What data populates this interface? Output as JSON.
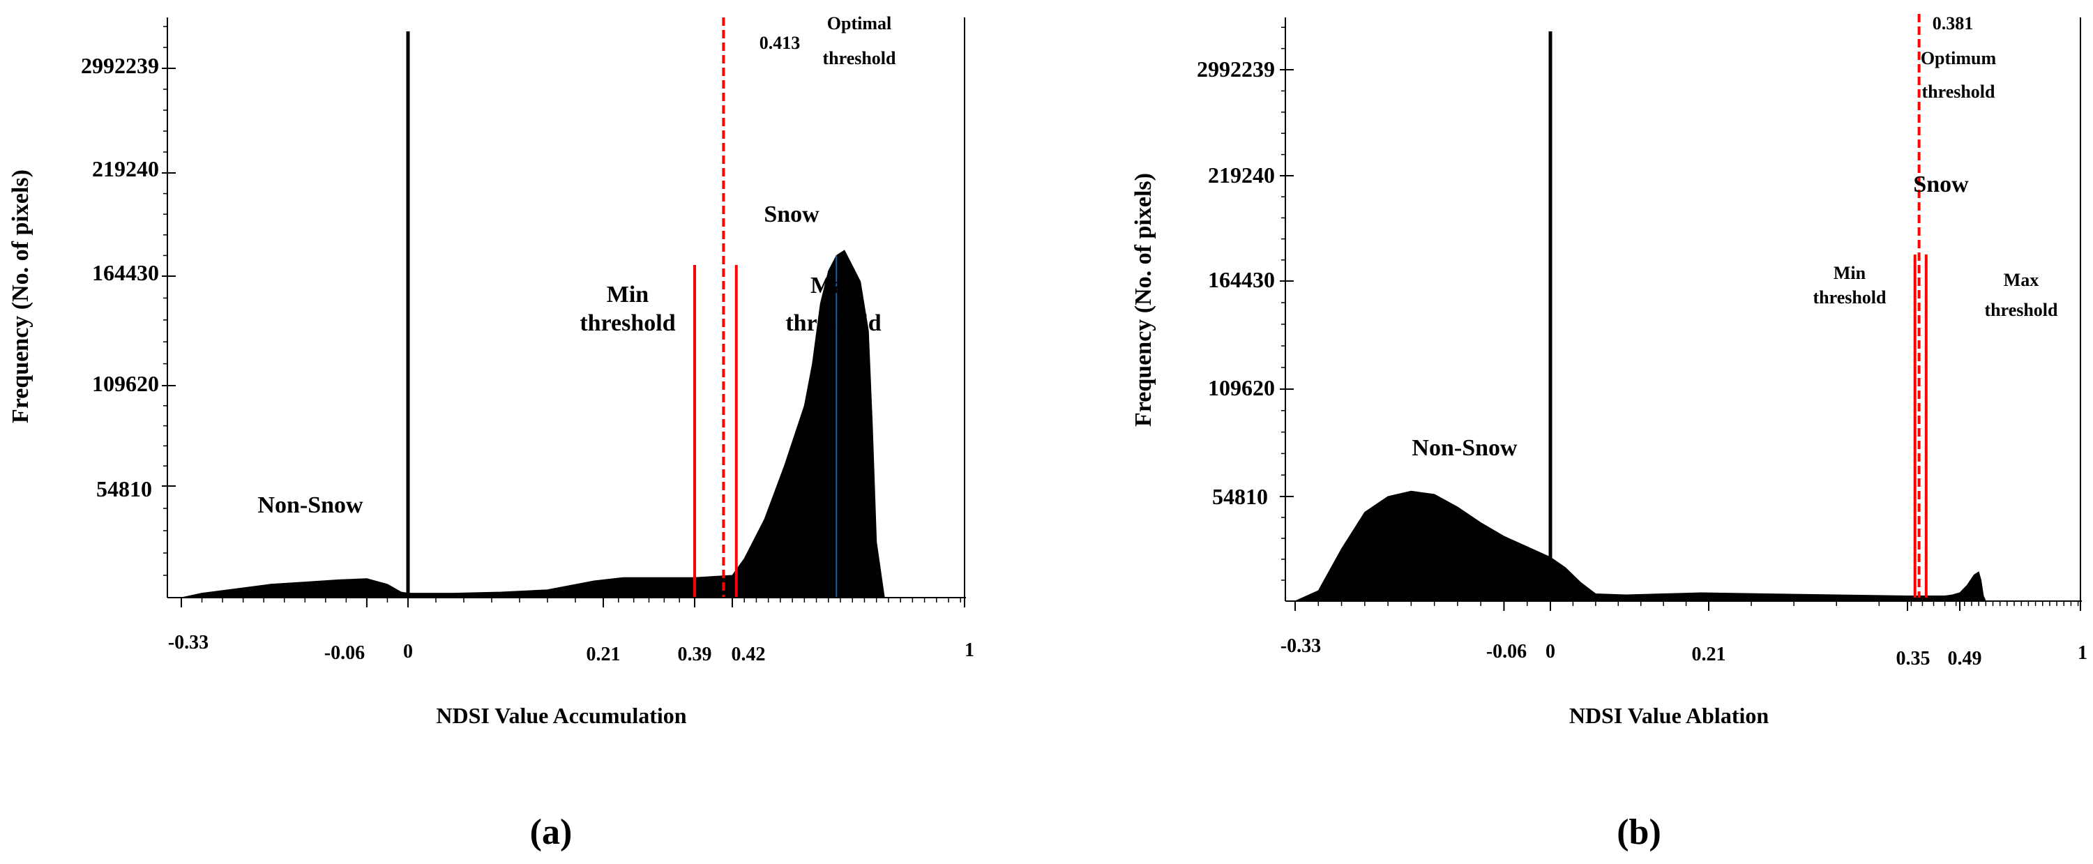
{
  "colors": {
    "background": "#ffffff",
    "axis": "#000000",
    "histogram": "#000000",
    "threshold": "#ff0000",
    "peak_line": "#1f5fa0"
  },
  "chart_data": [
    {
      "panel": "(a)",
      "type": "area",
      "title": "",
      "xlabel": "NDSI Value Accumulation",
      "ylabel": "Frequency (No. of pixels)",
      "xlim": [
        -0.33,
        1
      ],
      "x_tick_labels": [
        {
          "value": -0.33,
          "label": "-0.33"
        },
        {
          "value": -0.06,
          "label": "-0.06"
        },
        {
          "value": 0,
          "label": "0"
        },
        {
          "value": 0.21,
          "label": "0.21"
        },
        {
          "value": 0.39,
          "label": "0.39"
        },
        {
          "value": 0.42,
          "label": "0.42"
        },
        {
          "value": 1,
          "label": "1"
        }
      ],
      "x_tick_ref": [
        -0.33,
        0,
        0.21,
        0.39,
        0.42,
        1
      ],
      "y_tick_labels": [
        "54810",
        "109620",
        "164430",
        "219240",
        "2992239"
      ],
      "y_tick_levels": [
        1,
        2,
        3,
        4,
        5
      ],
      "ylim": [
        0,
        5.4
      ],
      "histogram": {
        "x": [
          -0.33,
          -0.3,
          -0.25,
          -0.2,
          -0.15,
          -0.1,
          -0.06,
          -0.03,
          -0.01,
          0.0,
          0.05,
          0.1,
          0.15,
          0.2,
          0.25,
          0.3,
          0.35,
          0.39,
          0.42,
          0.45,
          0.5,
          0.55,
          0.6,
          0.62,
          0.64,
          0.66,
          0.68,
          0.7,
          0.72,
          0.74,
          0.76,
          0.77,
          0.78,
          0.8
        ],
        "y": [
          0.0,
          0.04,
          0.08,
          0.12,
          0.14,
          0.16,
          0.17,
          0.12,
          0.05,
          0.04,
          0.04,
          0.05,
          0.07,
          0.15,
          0.18,
          0.18,
          0.18,
          0.18,
          0.2,
          0.35,
          0.7,
          1.2,
          1.8,
          2.2,
          2.75,
          3.05,
          3.2,
          3.25,
          3.1,
          2.95,
          2.5,
          1.6,
          0.5,
          0.0
        ]
      },
      "zero_line": {
        "x": 0
      },
      "peak_marker": {
        "x": 0.68
      },
      "thresholds": [
        {
          "name": "Min threshold",
          "x": 0.39,
          "style": "solid"
        },
        {
          "name": "Optimal threshold",
          "x": 0.413,
          "style": "dashed"
        },
        {
          "name": "Max threshold",
          "x": 0.43,
          "style": "solid"
        }
      ],
      "annotations": {
        "optimal_value": "0.413",
        "optimal_label": [
          "Optimal",
          "threshold"
        ],
        "snow": "Snow",
        "min_label": [
          "Min",
          "threshold"
        ],
        "max_label": [
          "Max",
          "threshold"
        ],
        "non_snow": "Non-Snow"
      }
    },
    {
      "panel": "(b)",
      "type": "area",
      "title": "",
      "xlabel": "NDSI Value Ablation",
      "ylabel": "Frequency (No. of pixels)",
      "xlim": [
        -0.33,
        1
      ],
      "x_tick_labels": [
        {
          "value": -0.33,
          "label": "-0.33"
        },
        {
          "value": -0.06,
          "label": "-0.06"
        },
        {
          "value": 0,
          "label": "0"
        },
        {
          "value": 0.21,
          "label": "0.21"
        },
        {
          "value": 0.35,
          "label": "0.35"
        },
        {
          "value": 0.49,
          "label": "0.49"
        },
        {
          "value": 1,
          "label": "1"
        }
      ],
      "x_tick_ref": [
        -0.33,
        0,
        0.21,
        0.35,
        0.49,
        1
      ],
      "y_tick_labels": [
        "54810",
        "109620",
        "164430",
        "219240",
        "2992239"
      ],
      "y_tick_levels": [
        1,
        2,
        3,
        4,
        5
      ],
      "ylim": [
        0,
        5.4
      ],
      "histogram": {
        "x": [
          -0.33,
          -0.3,
          -0.27,
          -0.24,
          -0.21,
          -0.18,
          -0.15,
          -0.12,
          -0.09,
          -0.06,
          -0.03,
          0.0,
          0.02,
          0.04,
          0.06,
          0.1,
          0.15,
          0.2,
          0.25,
          0.3,
          0.35,
          0.38,
          0.4,
          0.43,
          0.45,
          0.47,
          0.49,
          0.52,
          0.55,
          0.57,
          0.58,
          0.59,
          0.6
        ],
        "y": [
          0.0,
          0.1,
          0.5,
          0.85,
          1.0,
          1.05,
          1.02,
          0.9,
          0.75,
          0.62,
          0.52,
          0.42,
          0.32,
          0.18,
          0.07,
          0.06,
          0.07,
          0.08,
          0.07,
          0.06,
          0.05,
          0.05,
          0.05,
          0.05,
          0.05,
          0.06,
          0.08,
          0.15,
          0.25,
          0.28,
          0.2,
          0.05,
          0.0
        ]
      },
      "zero_line": {
        "x": 0
      },
      "thresholds": [
        {
          "name": "Min threshold",
          "x": 0.37,
          "style": "solid"
        },
        {
          "name": "Optimum threshold",
          "x": 0.381,
          "style": "dashed"
        },
        {
          "name": "Max threshold",
          "x": 0.4,
          "style": "solid"
        }
      ],
      "annotations": {
        "optimal_value": "0.381",
        "optimal_label": [
          "Optimum",
          "threshold"
        ],
        "snow": "Snow",
        "min_label": [
          "Min",
          "threshold"
        ],
        "max_label": [
          "Max",
          "threshold"
        ],
        "non_snow": "Non-Snow"
      }
    }
  ]
}
